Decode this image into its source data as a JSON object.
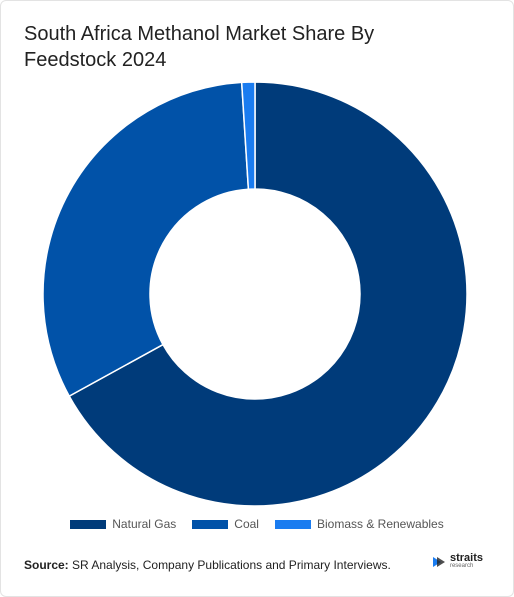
{
  "chart_data": {
    "type": "donut",
    "title": "South Africa Methanol Market Share By Feedstock 2024",
    "categories": [
      "Natural Gas",
      "Coal",
      "Biomass & Renewables"
    ],
    "values": [
      67,
      32,
      1
    ],
    "colors": [
      "#003b7a",
      "#0152a8",
      "#1a7cf0"
    ]
  },
  "footer": {
    "source_label": "Source:",
    "source_text": "SR Analysis, Company Publications and Primary Interviews.",
    "logo": "straits",
    "logo_sub": "research"
  }
}
